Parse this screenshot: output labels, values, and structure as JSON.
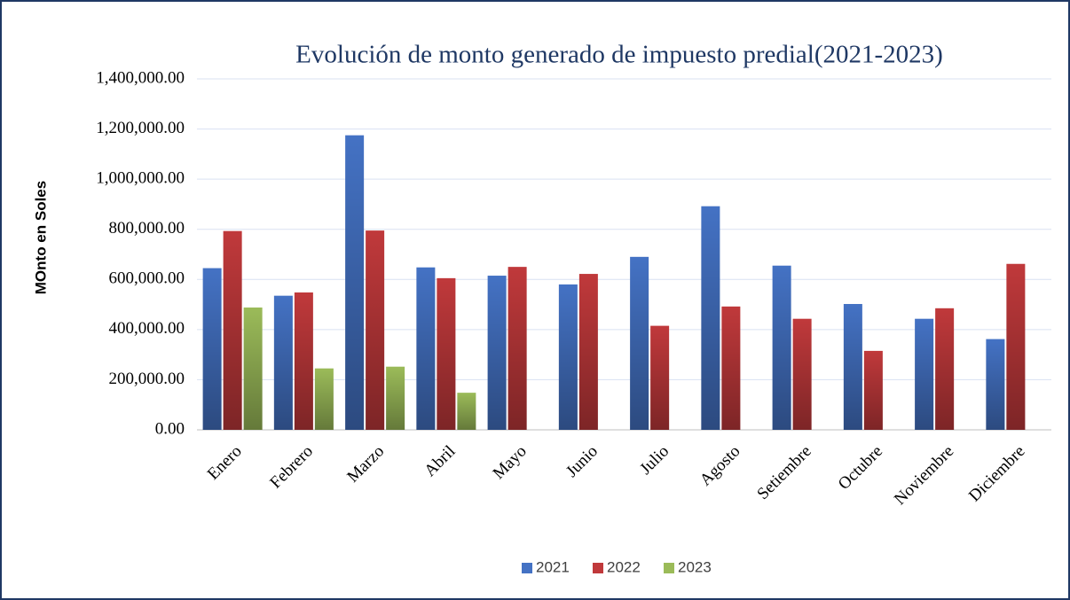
{
  "chart_data": {
    "type": "bar",
    "title": "Evolución de monto generado  de impuesto predial(2021-2023)",
    "y_label": "MOnto en  Soles",
    "categories": [
      "Enero",
      "Febrero",
      "Marzo",
      "Abril",
      "Mayo",
      "Junio",
      "Julio",
      "Agosto",
      "Setiembre",
      "Octubre",
      "Noviembre",
      "Diciembre"
    ],
    "series": [
      {
        "name": "2021",
        "color": "#4472c4",
        "values": [
          645000,
          535000,
          1175000,
          648000,
          615000,
          580000,
          690000,
          892000,
          655000,
          502000,
          443000,
          362000
        ]
      },
      {
        "name": "2022",
        "color": "#c0393b",
        "values": [
          793000,
          548000,
          795000,
          605000,
          650000,
          622000,
          415000,
          492000,
          443000,
          315000,
          485000,
          662000
        ]
      },
      {
        "name": "2023",
        "color": "#9bbb59",
        "values": [
          488000,
          245000,
          252000,
          148000,
          null,
          null,
          null,
          null,
          null,
          null,
          null,
          null
        ]
      }
    ],
    "ylim": [
      0,
      1400000
    ],
    "yticks": [
      {
        "value": 0,
        "label": "0.00"
      },
      {
        "value": 200000,
        "label": "200,000.00"
      },
      {
        "value": 400000,
        "label": "400,000.00"
      },
      {
        "value": 600000,
        "label": "600,000.00"
      },
      {
        "value": 800000,
        "label": "800,000.00"
      },
      {
        "value": 1000000,
        "label": "1,000,000.00"
      },
      {
        "value": 1200000,
        "label": "1,200,000.00"
      },
      {
        "value": 1400000,
        "label": "1,400,000.00"
      }
    ],
    "grid": true,
    "legend": "bottom"
  }
}
